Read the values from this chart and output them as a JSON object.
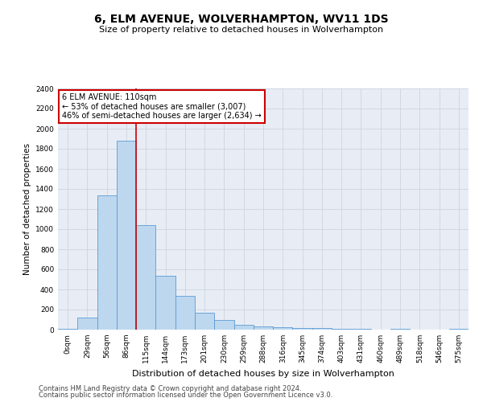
{
  "title": "6, ELM AVENUE, WOLVERHAMPTON, WV11 1DS",
  "subtitle": "Size of property relative to detached houses in Wolverhampton",
  "xlabel": "Distribution of detached houses by size in Wolverhampton",
  "ylabel": "Number of detached properties",
  "categories": [
    "0sqm",
    "29sqm",
    "56sqm",
    "86sqm",
    "115sqm",
    "144sqm",
    "173sqm",
    "201sqm",
    "230sqm",
    "259sqm",
    "288sqm",
    "316sqm",
    "345sqm",
    "374sqm",
    "403sqm",
    "431sqm",
    "460sqm",
    "489sqm",
    "518sqm",
    "546sqm",
    "575sqm"
  ],
  "bar_values": [
    10,
    120,
    1340,
    1880,
    1040,
    540,
    335,
    165,
    100,
    50,
    30,
    22,
    18,
    15,
    12,
    5,
    0,
    8,
    0,
    0,
    5
  ],
  "bar_color": "#bdd7ee",
  "bar_edge_color": "#5b9bd5",
  "annotation_label": "6 ELM AVENUE: 110sqm",
  "annotation_line1": "← 53% of detached houses are smaller (3,007)",
  "annotation_line2": "46% of semi-detached houses are larger (2,634) →",
  "annotation_box_facecolor": "#ffffff",
  "annotation_box_edgecolor": "#cc0000",
  "vline_color": "#cc0000",
  "vline_x": 3.5,
  "ylim": [
    0,
    2400
  ],
  "yticks": [
    0,
    200,
    400,
    600,
    800,
    1000,
    1200,
    1400,
    1600,
    1800,
    2000,
    2200,
    2400
  ],
  "grid_color": "#cdd5e0",
  "bg_color": "#e8edf5",
  "title_fontsize": 10,
  "subtitle_fontsize": 8,
  "xlabel_fontsize": 8,
  "ylabel_fontsize": 7.5,
  "tick_fontsize": 6.5,
  "annot_fontsize": 7,
  "footer1": "Contains HM Land Registry data © Crown copyright and database right 2024.",
  "footer2": "Contains public sector information licensed under the Open Government Licence v3.0.",
  "footer_fontsize": 6
}
